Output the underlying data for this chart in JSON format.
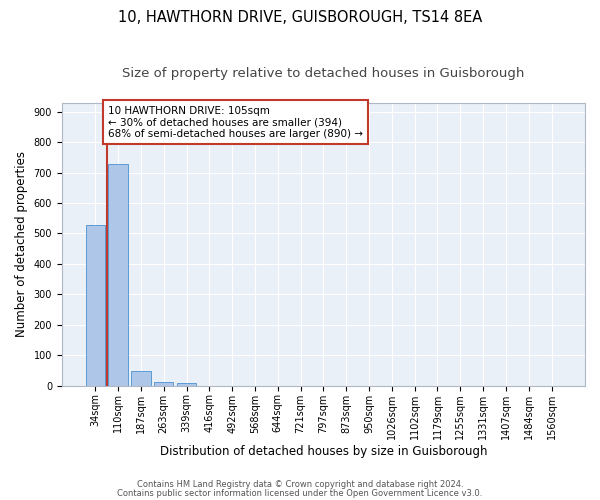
{
  "title1": "10, HAWTHORN DRIVE, GUISBOROUGH, TS14 8EA",
  "title2": "Size of property relative to detached houses in Guisborough",
  "xlabel": "Distribution of detached houses by size in Guisborough",
  "ylabel": "Number of detached properties",
  "categories": [
    "34sqm",
    "110sqm",
    "187sqm",
    "263sqm",
    "339sqm",
    "416sqm",
    "492sqm",
    "568sqm",
    "644sqm",
    "721sqm",
    "797sqm",
    "873sqm",
    "950sqm",
    "1026sqm",
    "1102sqm",
    "1179sqm",
    "1255sqm",
    "1331sqm",
    "1407sqm",
    "1484sqm",
    "1560sqm"
  ],
  "values": [
    527,
    727,
    47,
    12,
    10,
    0,
    0,
    0,
    0,
    0,
    0,
    0,
    0,
    0,
    0,
    0,
    0,
    0,
    0,
    0,
    0
  ],
  "bar_color": "#aec6e8",
  "bar_edge_color": "#5b9bd5",
  "highlight_line_color": "#c0392b",
  "annotation_text": "10 HAWTHORN DRIVE: 105sqm\n← 30% of detached houses are smaller (394)\n68% of semi-detached houses are larger (890) →",
  "annotation_box_color": "white",
  "annotation_box_edge_color": "#c0392b",
  "ylim": [
    0,
    930
  ],
  "yticks": [
    0,
    100,
    200,
    300,
    400,
    500,
    600,
    700,
    800,
    900
  ],
  "background_color": "#eaf0f8",
  "grid_color": "white",
  "footer1": "Contains HM Land Registry data © Crown copyright and database right 2024.",
  "footer2": "Contains public sector information licensed under the Open Government Licence v3.0.",
  "title_fontsize": 10.5,
  "subtitle_fontsize": 9.5,
  "tick_fontsize": 7,
  "ylabel_fontsize": 8.5,
  "xlabel_fontsize": 8.5,
  "footer_fontsize": 6,
  "annot_fontsize": 7.5
}
